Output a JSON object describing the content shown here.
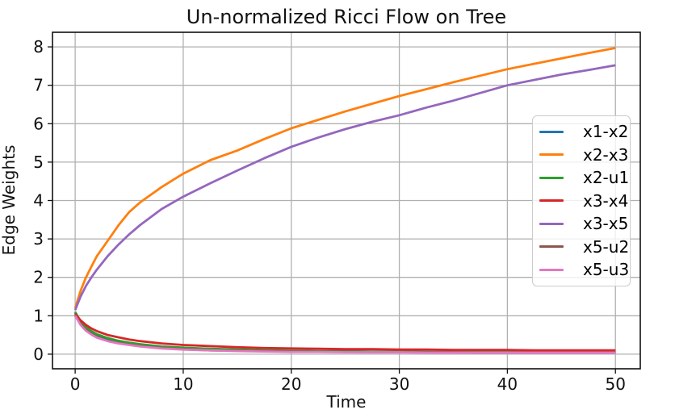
{
  "chart_data": {
    "type": "line",
    "title": "Un-normalized Ricci Flow on Tree",
    "xlabel": "Time",
    "ylabel": "Edge Weights",
    "xlim": [
      -2.1,
      52.3
    ],
    "ylim": [
      -0.38,
      8.38
    ],
    "xticks": [
      0,
      10,
      20,
      30,
      40,
      50
    ],
    "yticks": [
      0,
      1,
      2,
      3,
      4,
      5,
      6,
      7,
      8
    ],
    "grid": true,
    "legend_position": "center right",
    "colors": {
      "grid": "#b0b0b0",
      "frame": "#111111",
      "legend_border": "#cccccc"
    },
    "x": [
      0,
      0.5,
      1,
      1.5,
      2,
      3,
      4,
      5,
      6,
      8,
      10,
      12.5,
      15,
      17.5,
      20,
      22.5,
      25,
      27.5,
      30,
      32.5,
      35,
      37.5,
      40,
      42.5,
      45,
      47.5,
      50
    ],
    "series": [
      {
        "name": "x1-x2",
        "color": "#1f77b4",
        "values": [
          1.08,
          0.83,
          0.68,
          0.58,
          0.5,
          0.4,
          0.33,
          0.28,
          0.24,
          0.18,
          0.15,
          0.12,
          0.1,
          0.09,
          0.08,
          0.07,
          0.07,
          0.06,
          0.06,
          0.06,
          0.05,
          0.05,
          0.05,
          0.05,
          0.05,
          0.05,
          0.05
        ]
      },
      {
        "name": "x2-x3",
        "color": "#ff7f0e",
        "values": [
          1.2,
          1.65,
          2.0,
          2.28,
          2.55,
          2.95,
          3.35,
          3.7,
          3.95,
          4.35,
          4.7,
          5.05,
          5.3,
          5.6,
          5.88,
          6.1,
          6.32,
          6.52,
          6.72,
          6.9,
          7.08,
          7.25,
          7.42,
          7.56,
          7.7,
          7.84,
          7.97
        ]
      },
      {
        "name": "x2-u1",
        "color": "#2ca02c",
        "values": [
          1.1,
          0.85,
          0.7,
          0.6,
          0.52,
          0.42,
          0.35,
          0.3,
          0.26,
          0.2,
          0.17,
          0.14,
          0.12,
          0.1,
          0.09,
          0.08,
          0.08,
          0.07,
          0.07,
          0.06,
          0.06,
          0.06,
          0.05,
          0.05,
          0.05,
          0.05,
          0.05
        ]
      },
      {
        "name": "x3-x4",
        "color": "#d62728",
        "values": [
          1.05,
          0.88,
          0.76,
          0.67,
          0.6,
          0.5,
          0.44,
          0.38,
          0.34,
          0.28,
          0.24,
          0.21,
          0.18,
          0.16,
          0.15,
          0.14,
          0.13,
          0.13,
          0.12,
          0.12,
          0.11,
          0.11,
          0.11,
          0.1,
          0.1,
          0.1,
          0.1
        ]
      },
      {
        "name": "x3-x5",
        "color": "#9467bd",
        "values": [
          1.15,
          1.5,
          1.78,
          2.0,
          2.2,
          2.55,
          2.85,
          3.12,
          3.36,
          3.78,
          4.1,
          4.45,
          4.78,
          5.1,
          5.4,
          5.64,
          5.86,
          6.05,
          6.22,
          6.42,
          6.6,
          6.8,
          7.0,
          7.14,
          7.28,
          7.4,
          7.52
        ]
      },
      {
        "name": "x5-u2",
        "color": "#8c564b",
        "values": [
          1.02,
          0.78,
          0.63,
          0.53,
          0.45,
          0.35,
          0.29,
          0.25,
          0.21,
          0.16,
          0.13,
          0.1,
          0.09,
          0.08,
          0.07,
          0.06,
          0.06,
          0.05,
          0.05,
          0.05,
          0.05,
          0.04,
          0.04,
          0.04,
          0.04,
          0.04,
          0.04
        ]
      },
      {
        "name": "x5-u3",
        "color": "#e377c2",
        "values": [
          1.0,
          0.76,
          0.61,
          0.51,
          0.43,
          0.34,
          0.28,
          0.24,
          0.2,
          0.15,
          0.12,
          0.1,
          0.08,
          0.07,
          0.06,
          0.06,
          0.05,
          0.05,
          0.05,
          0.04,
          0.04,
          0.04,
          0.04,
          0.04,
          0.04,
          0.04,
          0.04
        ]
      }
    ]
  }
}
